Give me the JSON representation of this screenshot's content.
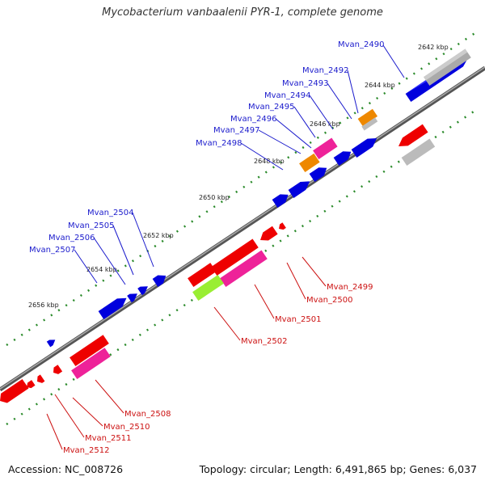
{
  "title": "Mycobacterium vanbaalenii PYR-1, complete genome",
  "footer": {
    "accession": "Accession: NC_008726",
    "topology": "Topology: circular; Length: 6,491,865 bp; Genes: 6,037"
  },
  "colors": {
    "forward_label": "#1a1acc",
    "reverse_label": "#cc1111",
    "backbone": "#777777",
    "tick": "#2a8a2a",
    "blue_gene": "#0000ee",
    "red_gene": "#ee0000",
    "pink_gene": "#ee2299",
    "orange_gene": "#ee8800",
    "gray_gene": "#bbbbbb",
    "green_gene": "#99ee33"
  },
  "kbp_labels": [
    "2642 kbp",
    "2644 kbp",
    "2646 kbp",
    "2648 kbp",
    "2650 kbp",
    "2652 kbp",
    "2654 kbp",
    "2656 kbp"
  ],
  "forward_genes": [
    "Mvan_2490",
    "Mvan_2492",
    "Mvan_2493",
    "Mvan_2494",
    "Mvan_2495",
    "Mvan_2496",
    "Mvan_2497",
    "Mvan_2498",
    "Mvan_2504",
    "Mvan_2505",
    "Mvan_2506",
    "Mvan_2507"
  ],
  "reverse_genes": [
    "Mvan_2499",
    "Mvan_2500",
    "Mvan_2501",
    "Mvan_2502",
    "Mvan_2508",
    "Mvan_2510",
    "Mvan_2511",
    "Mvan_2512"
  ]
}
